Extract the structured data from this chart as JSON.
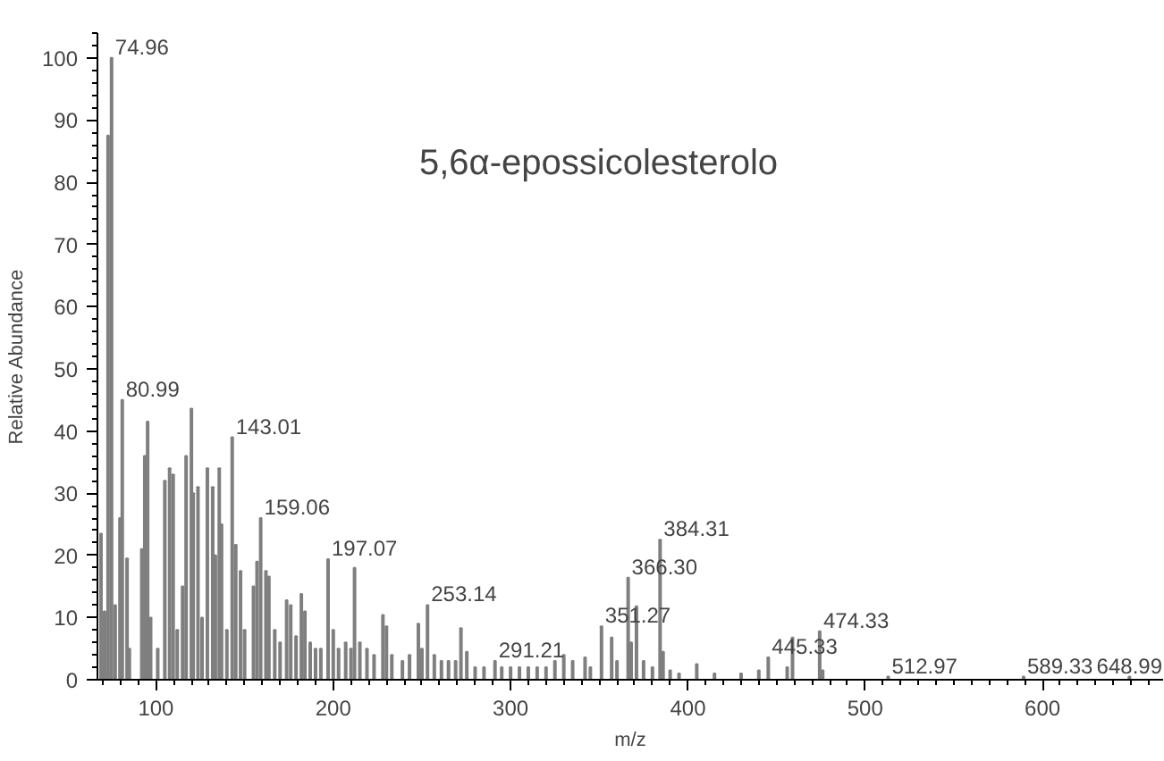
{
  "chart_data": {
    "type": "bar",
    "xlabel": "m/z",
    "ylabel": "Relative Abundance",
    "color": "#7f7f7f",
    "grid": false,
    "xlim": [
      67,
      668
    ],
    "xticks": [
      100,
      200,
      300,
      400,
      500,
      600
    ],
    "ylim": [
      0,
      104
    ],
    "yticks": [
      0,
      10,
      20,
      30,
      40,
      50,
      60,
      70,
      80,
      90,
      100
    ],
    "x": [
      69,
      71,
      73,
      74.96,
      77,
      79.7,
      80.99,
      83.7,
      85,
      92,
      93.7,
      95.3,
      97,
      101,
      105,
      107.7,
      109.7,
      112,
      115,
      117,
      120,
      121,
      123.7,
      126,
      129,
      132,
      133.5,
      135.7,
      137,
      140,
      143.01,
      145,
      147.7,
      150,
      155,
      157,
      159.06,
      162,
      163.7,
      167,
      170,
      173.7,
      176,
      179,
      182,
      184,
      187,
      190,
      193,
      197.07,
      200,
      203,
      207,
      210,
      212,
      215,
      219,
      223,
      228,
      230,
      233,
      239,
      243,
      248,
      250,
      253.14,
      257,
      261,
      265,
      269,
      272,
      275.3,
      280,
      285,
      291.21,
      295,
      300,
      305,
      310,
      315,
      320,
      325,
      330,
      335,
      342,
      345,
      351.27,
      357,
      360,
      366.3,
      368,
      371,
      375,
      380,
      384.31,
      386,
      390,
      395,
      405,
      415,
      430,
      440,
      445.33,
      456,
      459,
      474.33,
      476,
      512.97,
      589.33,
      648.99
    ],
    "values": [
      23.5,
      11,
      87.5,
      100,
      12,
      26,
      45,
      19.5,
      5,
      21,
      36,
      41.5,
      10,
      5,
      32,
      34,
      33,
      8,
      15,
      36,
      43.6,
      30,
      31,
      10,
      34,
      31,
      20,
      34,
      25,
      8,
      39,
      21.7,
      17.5,
      8,
      15,
      19,
      26,
      17.5,
      16.6,
      8,
      6,
      12.8,
      12,
      7,
      13.8,
      11,
      6,
      5,
      5,
      19.4,
      8,
      5,
      6,
      5,
      18,
      6,
      5,
      4,
      10.4,
      8.6,
      4,
      3,
      4,
      9,
      5,
      12,
      4,
      3,
      3,
      3,
      8.3,
      4.5,
      2,
      2,
      3,
      2,
      2,
      2,
      2,
      2,
      2,
      3,
      4,
      3,
      3.6,
      2,
      8.6,
      6.8,
      3,
      16.4,
      6,
      11.8,
      3,
      2,
      22.5,
      4.5,
      1.5,
      1,
      2.5,
      1,
      1,
      1.5,
      3.6,
      2,
      6.8,
      7.8,
      1.5,
      0.5,
      0.5,
      0.5
    ],
    "annotations": [
      {
        "text": "74.96",
        "x": 74.96,
        "y": 100
      },
      {
        "text": "80.99",
        "x": 80.99,
        "y": 45
      },
      {
        "text": "143.01",
        "x": 143.01,
        "y": 39
      },
      {
        "text": "159.06",
        "x": 159.06,
        "y": 26
      },
      {
        "text": "197.07",
        "x": 197.07,
        "y": 19.4
      },
      {
        "text": "253.14",
        "x": 253.14,
        "y": 12
      },
      {
        "text": "291.21",
        "x": 291.21,
        "y": 3
      },
      {
        "text": "351.27",
        "x": 351.27,
        "y": 8.6
      },
      {
        "text": "366.30",
        "x": 366.3,
        "y": 16.4
      },
      {
        "text": "384.31",
        "x": 384.31,
        "y": 22.5
      },
      {
        "text": "445.33",
        "x": 445.33,
        "y": 3.6
      },
      {
        "text": "474.33",
        "x": 474.33,
        "y": 7.8
      },
      {
        "text": "512.97",
        "x": 512.97,
        "y": 0.5
      },
      {
        "text": "589.33",
        "x": 589.33,
        "y": 0.5
      },
      {
        "text": "648.99",
        "x": 648.99,
        "y": 0.5
      },
      "5,6α-epossicolesterolo"
    ]
  }
}
